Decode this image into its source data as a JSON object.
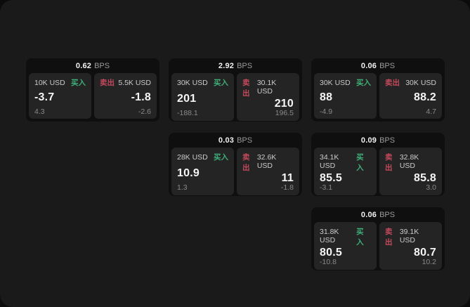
{
  "labels": {
    "bps": "BPS",
    "buy": "买入",
    "sell": "卖出"
  },
  "colors": {
    "buy_green": "#3fae78",
    "sell_red": "#c4495c",
    "page_bg": "#1a1a1a",
    "card_bg": "#0f0f0f",
    "panel_bg": "#242424"
  },
  "cards": [
    {
      "bps": "0.62",
      "buy": {
        "notional": "10K USD",
        "price": "-3.7",
        "change": "4.3"
      },
      "sell": {
        "notional": "5.5K USD",
        "price": "-1.8",
        "change": "-2.6"
      }
    },
    {
      "bps": "2.92",
      "buy": {
        "notional": "30K USD",
        "price": "201",
        "change": "-188.1"
      },
      "sell": {
        "notional": "30.1K USD",
        "price": "210",
        "change": "196.5"
      }
    },
    {
      "bps": "0.06",
      "buy": {
        "notional": "30K USD",
        "price": "88",
        "change": "-4.9"
      },
      "sell": {
        "notional": "30K USD",
        "price": "88.2",
        "change": "4.7"
      }
    },
    {
      "bps": "0.03",
      "buy": {
        "notional": "28K USD",
        "price": "10.9",
        "change": "1.3"
      },
      "sell": {
        "notional": "32.6K USD",
        "price": "11",
        "change": "-1.8"
      }
    },
    {
      "bps": "0.09",
      "buy": {
        "notional": "34.1K USD",
        "price": "85.5",
        "change": "-3.1"
      },
      "sell": {
        "notional": "32.8K USD",
        "price": "85.8",
        "change": "3.0"
      }
    },
    {
      "bps": "0.06",
      "buy": {
        "notional": "31.8K USD",
        "price": "80.5",
        "change": "-10.8"
      },
      "sell": {
        "notional": "39.1K USD",
        "price": "80.7",
        "change": "10.2"
      }
    }
  ]
}
